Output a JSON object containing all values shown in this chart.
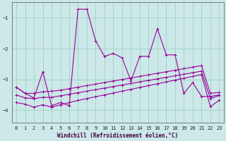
{
  "xlabel": "Windchill (Refroidissement éolien,°C)",
  "background_color": "#cce8e8",
  "grid_color": "#99ccbb",
  "line_color": "#990099",
  "xlim": [
    -0.5,
    23.5
  ],
  "ylim": [
    -4.4,
    -0.5
  ],
  "yticks": [
    -4,
    -3,
    -2,
    -1
  ],
  "xticks": [
    0,
    1,
    2,
    3,
    4,
    5,
    6,
    7,
    8,
    9,
    10,
    11,
    12,
    13,
    14,
    15,
    16,
    17,
    18,
    19,
    20,
    21,
    22,
    23
  ],
  "main_series": {
    "x": [
      0,
      1,
      2,
      3,
      4,
      5,
      6,
      7,
      8,
      9,
      10,
      11,
      12,
      13,
      14,
      15,
      16,
      17,
      18,
      19,
      20,
      21,
      22,
      23
    ],
    "y": [
      -3.25,
      -3.45,
      -3.6,
      -2.75,
      -3.85,
      -3.75,
      -3.85,
      -0.72,
      -0.72,
      -1.75,
      -2.25,
      -2.15,
      -2.3,
      -3.05,
      -2.25,
      -2.25,
      -1.35,
      -2.2,
      -2.2,
      -3.45,
      -3.1,
      -3.55,
      -3.55,
      -3.5
    ]
  },
  "band1": {
    "x": [
      0,
      1,
      2,
      3,
      4,
      5,
      6,
      7,
      8,
      9,
      10,
      11,
      12,
      13,
      14,
      15,
      16,
      17,
      18,
      19,
      20,
      21,
      22,
      23
    ],
    "y": [
      -3.25,
      -3.45,
      -3.45,
      -3.4,
      -3.38,
      -3.35,
      -3.3,
      -3.25,
      -3.2,
      -3.15,
      -3.1,
      -3.05,
      -3.0,
      -2.95,
      -2.9,
      -2.85,
      -2.8,
      -2.75,
      -2.7,
      -2.65,
      -2.6,
      -2.55,
      -3.45,
      -3.42
    ]
  },
  "band2": {
    "x": [
      0,
      1,
      2,
      3,
      4,
      5,
      6,
      7,
      8,
      9,
      10,
      11,
      12,
      13,
      14,
      15,
      16,
      17,
      18,
      19,
      20,
      21,
      22,
      23
    ],
    "y": [
      -3.5,
      -3.6,
      -3.62,
      -3.58,
      -3.58,
      -3.53,
      -3.48,
      -3.43,
      -3.38,
      -3.33,
      -3.28,
      -3.23,
      -3.18,
      -3.13,
      -3.08,
      -3.03,
      -2.98,
      -2.93,
      -2.88,
      -2.83,
      -2.78,
      -2.73,
      -3.62,
      -3.52
    ]
  },
  "band3": {
    "x": [
      0,
      1,
      2,
      3,
      4,
      5,
      6,
      7,
      8,
      9,
      10,
      11,
      12,
      13,
      14,
      15,
      16,
      17,
      18,
      19,
      20,
      21,
      22,
      23
    ],
    "y": [
      -3.75,
      -3.8,
      -3.9,
      -3.82,
      -3.9,
      -3.82,
      -3.75,
      -3.68,
      -3.62,
      -3.56,
      -3.5,
      -3.44,
      -3.38,
      -3.32,
      -3.26,
      -3.2,
      -3.14,
      -3.08,
      -3.02,
      -2.96,
      -2.9,
      -2.84,
      -3.88,
      -3.68
    ]
  }
}
